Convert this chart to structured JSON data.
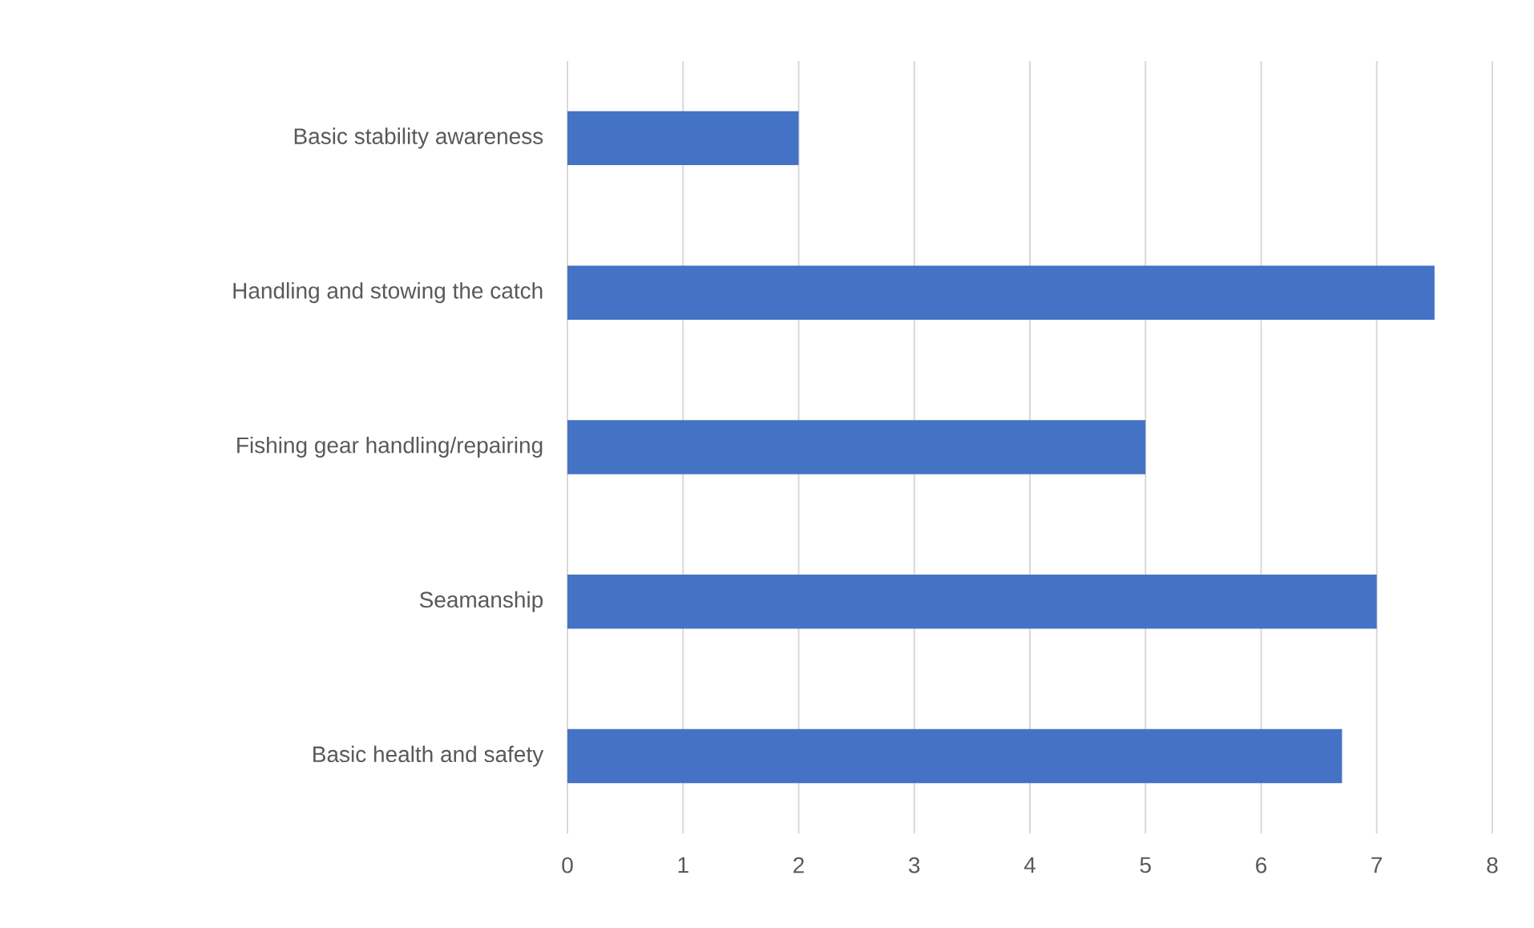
{
  "chart_data": {
    "type": "bar",
    "orientation": "horizontal",
    "categories": [
      "Basic stability awareness",
      "Handling and stowing the catch",
      "Fishing gear handling/repairing",
      "Seamanship",
      "Basic health and safety"
    ],
    "values": [
      2,
      7.5,
      5,
      7,
      6.7
    ],
    "color": "#4472c4",
    "xlim": [
      0,
      8
    ],
    "xticks": [
      0,
      1,
      2,
      3,
      4,
      5,
      6,
      7,
      8
    ],
    "grid": "x"
  }
}
